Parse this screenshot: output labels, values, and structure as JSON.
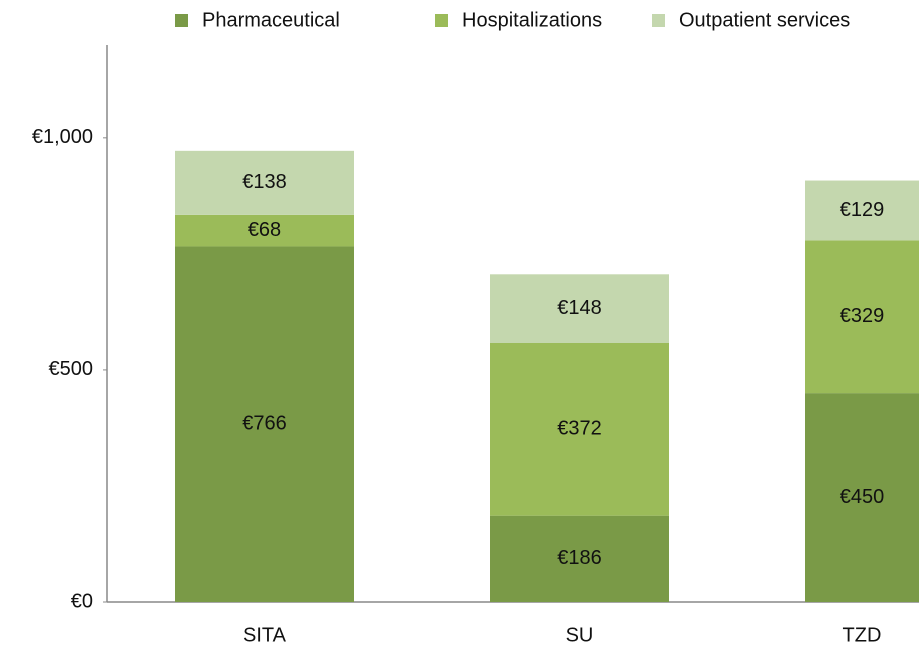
{
  "chart_data": {
    "type": "stacked-bar",
    "categories": [
      "SITA",
      "SU",
      "TZD"
    ],
    "series": [
      {
        "name": "Pharmaceutical",
        "color": "#7a9a47",
        "values": [
          766,
          186,
          450
        ],
        "value_labels": [
          "€766",
          "€186",
          "€450"
        ]
      },
      {
        "name": "Hospitalizations",
        "color": "#9bbb59",
        "values": [
          68,
          372,
          329
        ],
        "value_labels": [
          "€68",
          "€372",
          "€329"
        ]
      },
      {
        "name": "Outpatient services",
        "color": "#c4d7ae",
        "values": [
          138,
          148,
          129
        ],
        "value_labels": [
          "€138",
          "€148",
          "€129"
        ]
      }
    ],
    "ylim": [
      0,
      1200
    ],
    "yticks": [
      {
        "value": 0,
        "label": "€0"
      },
      {
        "value": 500,
        "label": "€500"
      },
      {
        "value": 1000,
        "label": "€1,000"
      }
    ],
    "legend": "top"
  }
}
